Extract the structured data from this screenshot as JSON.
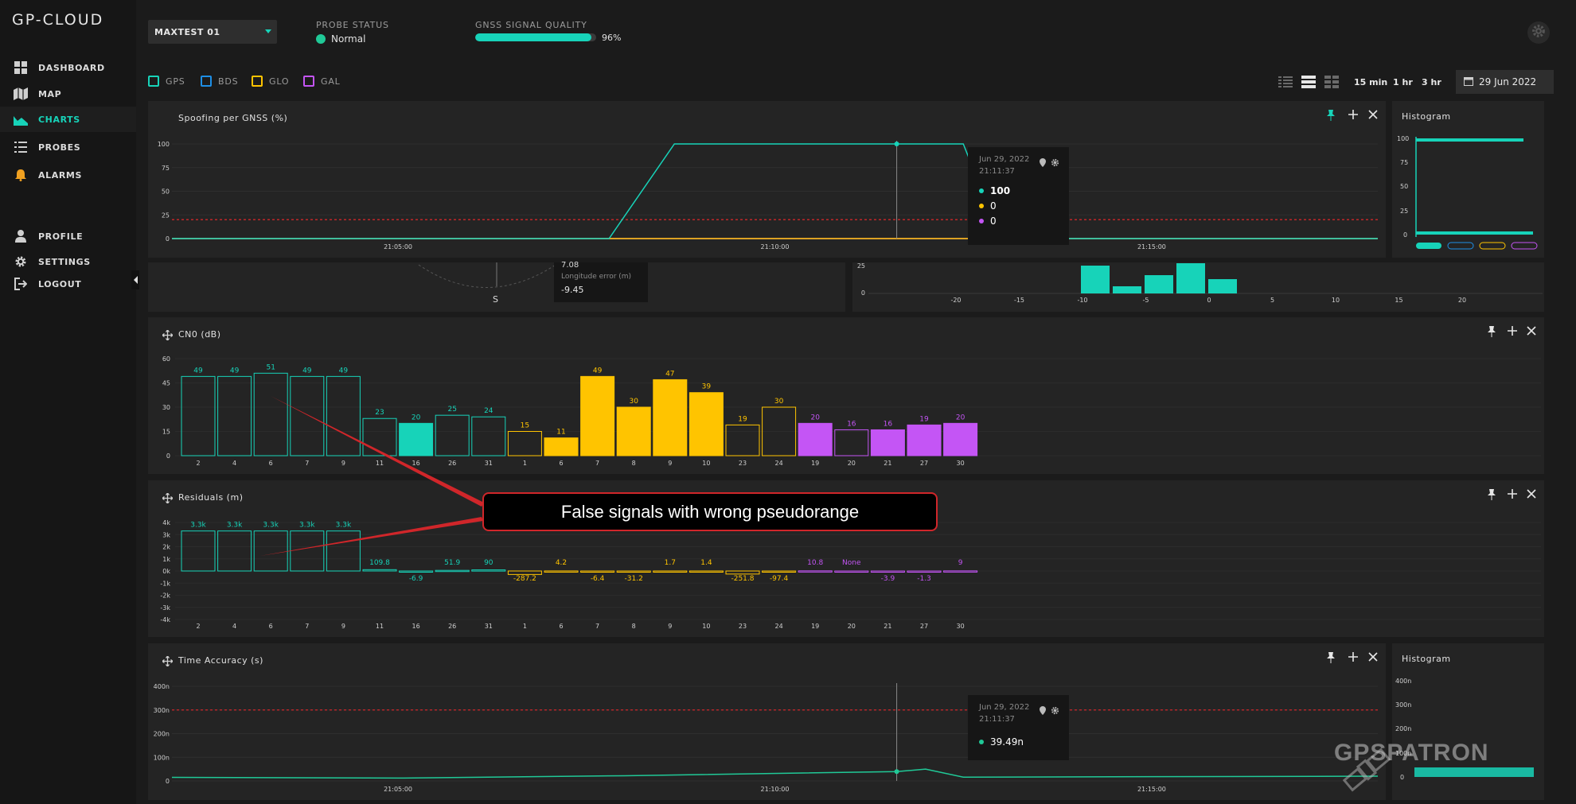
{
  "app": {
    "logo": "GP-CLOUD"
  },
  "sidebar": {
    "items": [
      {
        "label": "DASHBOARD",
        "icon": "grid-icon"
      },
      {
        "label": "MAP",
        "icon": "map-icon"
      },
      {
        "label": "CHARTS",
        "icon": "area-chart-icon",
        "active": true
      },
      {
        "label": "PROBES",
        "icon": "list-icon"
      },
      {
        "label": "ALARMS",
        "icon": "bell-icon"
      },
      {
        "label": "PROFILE",
        "icon": "user-icon"
      },
      {
        "label": "SETTINGS",
        "icon": "gear-icon"
      },
      {
        "label": "LOGOUT",
        "icon": "logout-icon"
      }
    ]
  },
  "header": {
    "probe_select": "MAXTEST 01",
    "probe_status_label": "PROBE STATUS",
    "probe_status_value": "Normal",
    "gnss_label": "GNSS SIGNAL QUALITY",
    "gnss_value": "96%",
    "gnss_fraction": 0.96
  },
  "constellations": [
    {
      "label": "GPS",
      "color": "#17d3b9"
    },
    {
      "label": "BDS",
      "color": "#1e8fe6"
    },
    {
      "label": "GLO",
      "color": "#ffc400"
    },
    {
      "label": "GAL",
      "color": "#c455f5"
    }
  ],
  "time_ranges": [
    "15 min",
    "1 hr",
    "3 hr"
  ],
  "date": "29 Jun 2022",
  "spoofing_panel": {
    "title": "Spoofing per GNSS (%)",
    "y_ticks": [
      "100",
      "75",
      "50",
      "25",
      "0"
    ],
    "x_ticks": [
      "21:05:00",
      "21:10:00",
      "21:15:00"
    ],
    "tooltip": {
      "date": "Jun 29, 2022",
      "time": "21:11:37",
      "values": [
        "100",
        "0",
        "0"
      ]
    }
  },
  "histogram1": {
    "title": "Histogram",
    "y_ticks": [
      "100",
      "75",
      "50",
      "25",
      "0"
    ]
  },
  "middle_row": {
    "compass_label": "S",
    "partial_value": "7.08",
    "longitude_label": "Longitude error (m)",
    "longitude_value": "-9.45",
    "hist_y_ticks": [
      "25",
      "0"
    ],
    "hist_x_ticks": [
      "-20",
      "-15",
      "-10",
      "-5",
      "0",
      "5",
      "10",
      "15",
      "20"
    ]
  },
  "cn0_panel": {
    "title": "CN0 (dB)",
    "y_ticks": [
      "60",
      "45",
      "30",
      "15",
      "0"
    ]
  },
  "residuals_panel": {
    "title": "Residuals (m)",
    "y_ticks": [
      "4k",
      "3k",
      "2k",
      "1k",
      "0k",
      "-1k",
      "-2k",
      "-3k",
      "-4k"
    ]
  },
  "time_panel": {
    "title": "Time Accuracy (s)",
    "y_ticks": [
      "400n",
      "300n",
      "200n",
      "100n",
      "0"
    ],
    "x_ticks": [
      "21:05:00",
      "21:10:00",
      "21:15:00"
    ],
    "tooltip": {
      "date": "Jun 29, 2022",
      "time": "21:11:37",
      "value": "39.49n"
    }
  },
  "histogram2": {
    "title": "Histogram",
    "y_ticks": [
      "400n",
      "300n",
      "200n",
      "100n",
      "0"
    ]
  },
  "callout": "False signals with wrong pseudorange",
  "watermark": "GPSPATRON",
  "chart_data": [
    {
      "type": "bar",
      "title": "CN0 (dB)",
      "ylim": [
        0,
        60
      ],
      "categories": [
        "2",
        "4",
        "6",
        "7",
        "9",
        "11",
        "16",
        "26",
        "31",
        "1",
        "6",
        "7",
        "8",
        "9",
        "10",
        "23",
        "24",
        "19",
        "20",
        "21",
        "27",
        "30"
      ],
      "values": [
        49,
        49,
        51,
        49,
        49,
        23,
        20,
        25,
        24,
        15,
        11,
        49,
        30,
        47,
        39,
        19,
        30,
        20,
        16,
        16,
        19,
        20
      ],
      "labels": [
        "49",
        "49",
        "51",
        "49",
        "49",
        "23",
        "20",
        "25",
        "24",
        "15",
        "11",
        "49",
        "30",
        "47",
        "39",
        "19",
        "30",
        "20",
        "16",
        "16",
        "19",
        "20"
      ],
      "constellation": [
        "GPS",
        "GPS",
        "GPS",
        "GPS",
        "GPS",
        "GPS",
        "GPS",
        "GPS",
        "GPS",
        "GLO",
        "GLO",
        "GLO",
        "GLO",
        "GLO",
        "GLO",
        "GLO",
        "GLO",
        "GAL",
        "GAL",
        "GAL",
        "GAL",
        "GAL"
      ],
      "filled": [
        false,
        false,
        false,
        false,
        false,
        false,
        true,
        false,
        false,
        false,
        true,
        true,
        true,
        true,
        true,
        false,
        false,
        true,
        false,
        true,
        true,
        true
      ]
    },
    {
      "type": "bar",
      "title": "Residuals (m)",
      "ylim": [
        -4000,
        4000
      ],
      "categories": [
        "2",
        "4",
        "6",
        "7",
        "9",
        "11",
        "16",
        "26",
        "31",
        "1",
        "6",
        "7",
        "8",
        "9",
        "10",
        "23",
        "24",
        "19",
        "20",
        "21",
        "27",
        "30"
      ],
      "values": [
        3300,
        3300,
        3300,
        3300,
        3300,
        109.8,
        -6.9,
        51.9,
        90,
        -287.2,
        4.2,
        -6.4,
        -31.2,
        1.7,
        1.4,
        -251.8,
        -97.4,
        10.8,
        0,
        -3.9,
        -1.3,
        9
      ],
      "labels": [
        "3.3k",
        "3.3k",
        "3.3k",
        "3.3k",
        "3.3k",
        "109.8",
        "-6.9",
        "51.9",
        "90",
        "-287.2",
        "4.2",
        "-6.4",
        "-31.2",
        "1.7",
        "1.4",
        "-251.8",
        "-97.4",
        "10.8",
        "None",
        "-3.9",
        "-1.3",
        "9"
      ],
      "constellation": [
        "GPS",
        "GPS",
        "GPS",
        "GPS",
        "GPS",
        "GPS",
        "GPS",
        "GPS",
        "GPS",
        "GLO",
        "GLO",
        "GLO",
        "GLO",
        "GLO",
        "GLO",
        "GLO",
        "GLO",
        "GAL",
        "GAL",
        "GAL",
        "GAL",
        "GAL"
      ]
    },
    {
      "type": "line",
      "title": "Spoofing per GNSS (%)",
      "ylim": [
        0,
        100
      ],
      "x": [
        "21:02:00",
        "21:04:48",
        "21:07:48",
        "21:08:40",
        "21:08:52",
        "21:11:37",
        "21:12:30",
        "21:12:45",
        "21:13:00",
        "21:18:00"
      ],
      "series": [
        {
          "values": [
            0,
            0,
            0,
            100,
            100,
            100,
            100,
            50,
            0,
            0
          ]
        },
        {
          "values": [
            0,
            0,
            0,
            0,
            0,
            0,
            0,
            0,
            0,
            0
          ]
        },
        {
          "values": [
            0,
            0,
            0,
            0,
            0,
            0,
            0,
            0,
            0,
            0
          ]
        }
      ],
      "threshold": 20
    },
    {
      "type": "line",
      "title": "Time Accuracy (s)",
      "ylim": [
        0,
        400
      ],
      "x": [
        "21:02:00",
        "21:05:00",
        "21:08:00",
        "21:11:37",
        "21:12:00",
        "21:12:30",
        "21:15:00",
        "21:18:00"
      ],
      "series": [
        {
          "values": [
            15,
            12,
            22,
            39.49,
            50,
            16,
            18,
            20
          ]
        }
      ],
      "threshold": 300
    }
  ]
}
